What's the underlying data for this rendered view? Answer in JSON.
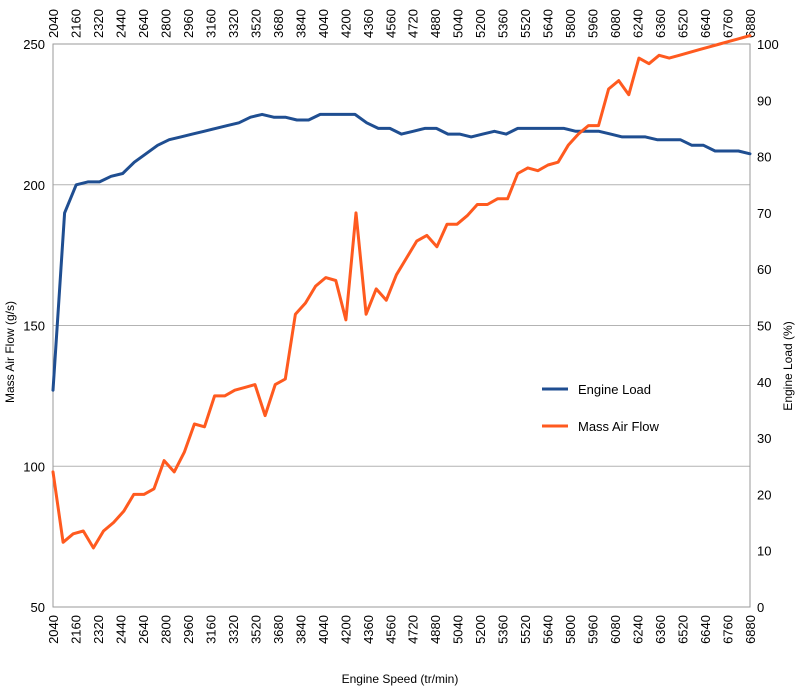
{
  "chart_data": {
    "type": "line",
    "title": "",
    "xlabel": "Engine Speed (tr/min)",
    "ylabel_left": "Mass Air Flow (g/s)",
    "ylabel_right": "Engine Load (%)",
    "x_ticks": [
      2040,
      2160,
      2320,
      2440,
      2640,
      2800,
      2960,
      3160,
      3320,
      3520,
      3680,
      3840,
      4040,
      4200,
      4360,
      4560,
      4720,
      4880,
      5040,
      5200,
      5360,
      5520,
      5640,
      5800,
      5960,
      6080,
      6240,
      6360,
      6520,
      6640,
      6760,
      6880
    ],
    "y_left_ticks": [
      50,
      100,
      150,
      200,
      250
    ],
    "y_left_range": [
      50,
      250
    ],
    "y_right_ticks": [
      0,
      10,
      20,
      30,
      40,
      50,
      60,
      70,
      80,
      90,
      100
    ],
    "y_right_range": [
      0,
      100
    ],
    "grid": true,
    "legend_position": "center-right",
    "series": [
      {
        "name": "Engine Load",
        "axis": "right",
        "color": "#1f4e91",
        "values": [
          38.5,
          70,
          75,
          75.5,
          75.5,
          76.5,
          77,
          79,
          80.5,
          82,
          83,
          83.5,
          84,
          84.5,
          85,
          85.5,
          86,
          87,
          87.5,
          87,
          87,
          86.5,
          86.5,
          87.5,
          87.5,
          87.5,
          87.5,
          86,
          85,
          85,
          84,
          84.5,
          85,
          85,
          84,
          84,
          83.5,
          84,
          84.5,
          84,
          85,
          85,
          85,
          85,
          85,
          84.5,
          84.5,
          84.5,
          84,
          83.5,
          83.5,
          83.5,
          83,
          83,
          83,
          82,
          82,
          81,
          81,
          81,
          80.5
        ]
      },
      {
        "name": "Mass Air Flow",
        "axis": "left",
        "color": "#ff5a1f",
        "values": [
          98,
          73,
          76,
          77,
          71,
          77,
          80,
          84,
          90,
          90,
          92,
          102,
          98,
          105,
          115,
          114,
          125,
          125,
          127,
          128,
          129,
          118,
          129,
          131,
          154,
          158,
          164,
          167,
          166,
          152,
          190,
          154,
          163,
          159,
          168,
          174,
          180,
          182,
          178,
          186,
          186,
          189,
          193,
          193,
          195,
          195,
          204,
          206,
          205,
          207,
          208,
          214,
          218,
          221,
          221,
          234,
          237,
          232,
          245,
          243,
          246,
          245,
          246,
          247,
          248,
          249,
          250,
          251,
          252,
          253
        ]
      }
    ]
  }
}
